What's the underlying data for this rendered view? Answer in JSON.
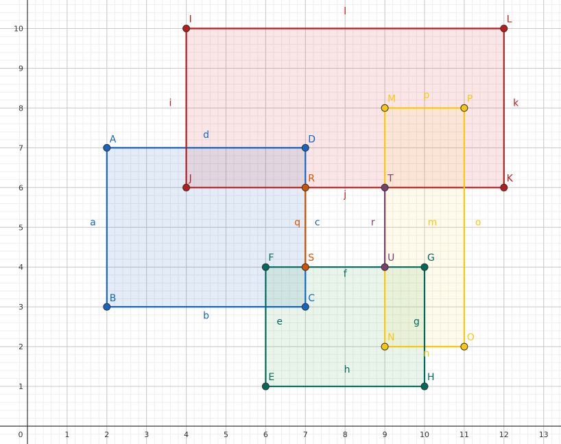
{
  "axes": {
    "x_ticks": [
      "0",
      "1",
      "2",
      "3",
      "4",
      "5",
      "6",
      "7",
      "8",
      "9",
      "10",
      "11",
      "12",
      "13"
    ],
    "y_ticks": [
      "1",
      "2",
      "3",
      "4",
      "5",
      "6",
      "7",
      "8",
      "9",
      "10"
    ],
    "xlim": [
      0,
      13.5
    ],
    "ylim": [
      -0.05,
      10.6
    ],
    "grid_minor": true,
    "grid_major": true
  },
  "rectangles": [
    {
      "id": "blue",
      "color": "#1565C0",
      "fill": "#1565C0",
      "corners": [
        "A",
        "B",
        "C",
        "D"
      ],
      "edges": [
        {
          "from": "A",
          "to": "B",
          "label": "a",
          "lx": 1.65,
          "ly": 5.05
        },
        {
          "from": "B",
          "to": "C",
          "label": "b",
          "lx": 4.5,
          "ly": 2.7
        },
        {
          "from": "C",
          "to": "D",
          "label": "c",
          "lx": 7.3,
          "ly": 5.05
        },
        {
          "from": "D",
          "to": "A",
          "label": "d",
          "lx": 4.5,
          "ly": 7.25
        }
      ]
    },
    {
      "id": "red",
      "color": "#B71C1C",
      "fill": "#D32F2F",
      "corners": [
        "I",
        "J",
        "K",
        "L"
      ],
      "edges": [
        {
          "from": "I",
          "to": "J",
          "label": "i",
          "lx": 3.6,
          "ly": 8.05
        },
        {
          "from": "J",
          "to": "K",
          "label": "j",
          "lx": 8.0,
          "ly": 5.75
        },
        {
          "from": "K",
          "to": "L",
          "label": "k",
          "lx": 12.3,
          "ly": 8.05
        },
        {
          "from": "L",
          "to": "I",
          "label": "l",
          "lx": 8.0,
          "ly": 10.35
        }
      ]
    },
    {
      "id": "yellow",
      "color": "#F9C80E",
      "fill": "#FFE066",
      "corners": [
        "M",
        "N",
        "O",
        "P"
      ],
      "edges": [
        {
          "from": "M",
          "to": "N",
          "label": "m",
          "lx": 10.2,
          "ly": 5.05
        },
        {
          "from": "N",
          "to": "O",
          "label": "n",
          "lx": 10.05,
          "ly": 1.75
        },
        {
          "from": "O",
          "to": "P",
          "label": "o",
          "lx": 11.35,
          "ly": 5.05
        },
        {
          "from": "P",
          "to": "M",
          "label": "p",
          "lx": 10.05,
          "ly": 8.25
        }
      ]
    },
    {
      "id": "green",
      "color": "#00695C",
      "fill": "#4CAF50",
      "corners": [
        "E",
        "F",
        "G",
        "H"
      ],
      "edges": [
        {
          "from": "E",
          "to": "F",
          "label": "e",
          "lx": 6.35,
          "ly": 2.55
        },
        {
          "from": "F",
          "to": "G",
          "label": "f",
          "lx": 8.0,
          "ly": 3.75
        },
        {
          "from": "G",
          "to": "H",
          "label": "g",
          "lx": 9.8,
          "ly": 2.55
        },
        {
          "from": "H",
          "to": "E",
          "label": "h",
          "lx": 8.05,
          "ly": 1.35
        }
      ]
    }
  ],
  "segments": [
    {
      "from": "R",
      "to": "S",
      "label": "q",
      "color": "#D35400",
      "lx": 6.8,
      "ly": 5.05
    },
    {
      "from": "T",
      "to": "U",
      "label": "r",
      "color": "#7B3F6E",
      "lx": 8.7,
      "ly": 5.05
    }
  ],
  "points": [
    {
      "name": "A",
      "x": 2,
      "y": 7,
      "color": "#1565C0",
      "dx": 4,
      "dy": -8
    },
    {
      "name": "B",
      "x": 2,
      "y": 3,
      "color": "#1565C0",
      "dx": 4,
      "dy": -8
    },
    {
      "name": "C",
      "x": 7,
      "y": 3,
      "color": "#1565C0",
      "dx": 4,
      "dy": -8
    },
    {
      "name": "D",
      "x": 7,
      "y": 7,
      "color": "#1565C0",
      "dx": 4,
      "dy": -8
    },
    {
      "name": "I",
      "x": 4,
      "y": 10,
      "color": "#B71C1C",
      "dx": 4,
      "dy": -9
    },
    {
      "name": "J",
      "x": 4,
      "y": 6,
      "color": "#B71C1C",
      "dx": 4,
      "dy": -9
    },
    {
      "name": "K",
      "x": 12,
      "y": 6,
      "color": "#B71C1C",
      "dx": 4,
      "dy": -9
    },
    {
      "name": "L",
      "x": 12,
      "y": 10,
      "color": "#B71C1C",
      "dx": 4,
      "dy": -9
    },
    {
      "name": "M",
      "x": 9,
      "y": 8,
      "color": "#F9C80E",
      "dx": 4,
      "dy": -9
    },
    {
      "name": "N",
      "x": 9,
      "y": 2,
      "color": "#F9C80E",
      "dx": 4,
      "dy": -9
    },
    {
      "name": "O",
      "x": 11,
      "y": 2,
      "color": "#F9C80E",
      "dx": 4,
      "dy": -9
    },
    {
      "name": "P",
      "x": 11,
      "y": 8,
      "color": "#F9C80E",
      "dx": 4,
      "dy": -9
    },
    {
      "name": "E",
      "x": 6,
      "y": 1,
      "color": "#00695C",
      "dx": 4,
      "dy": -9
    },
    {
      "name": "F",
      "x": 6,
      "y": 4,
      "color": "#00695C",
      "dx": 4,
      "dy": -9
    },
    {
      "name": "G",
      "x": 10,
      "y": 4,
      "color": "#00695C",
      "dx": 4,
      "dy": -9
    },
    {
      "name": "H",
      "x": 10,
      "y": 1,
      "color": "#00695C",
      "dx": 4,
      "dy": -9
    },
    {
      "name": "R",
      "x": 7,
      "y": 6,
      "color": "#D35400",
      "dx": 4,
      "dy": -9
    },
    {
      "name": "S",
      "x": 7,
      "y": 4,
      "color": "#D35400",
      "dx": 4,
      "dy": -9
    },
    {
      "name": "T",
      "x": 9,
      "y": 6,
      "color": "#7B3F6E",
      "dx": 4,
      "dy": -9
    },
    {
      "name": "U",
      "x": 9,
      "y": 4,
      "color": "#7B3F6E",
      "dx": 4,
      "dy": -9
    }
  ]
}
